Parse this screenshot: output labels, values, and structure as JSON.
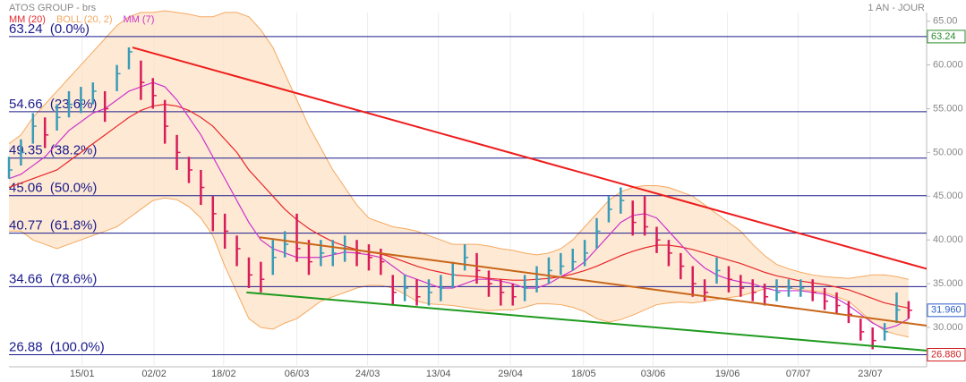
{
  "chart_data": {
    "type": "ohlc",
    "title": "ATOS GROUP - brs",
    "period": "1 AN - JOUR",
    "xlim": [
      0,
      76.5
    ],
    "xticks": [
      {
        "value": 6.1,
        "label": "15/01"
      },
      {
        "value": 12.1,
        "label": "02/02"
      },
      {
        "value": 17.9,
        "label": "18/02"
      },
      {
        "value": 24,
        "label": "06/03"
      },
      {
        "value": 29.9,
        "label": "24/03"
      },
      {
        "value": 35.8,
        "label": "13/04"
      },
      {
        "value": 41.8,
        "label": "29/04"
      },
      {
        "value": 47.9,
        "label": "18/05"
      },
      {
        "value": 53.7,
        "label": "03/06"
      },
      {
        "value": 59.9,
        "label": "19/06"
      },
      {
        "value": 65.8,
        "label": "07/07"
      },
      {
        "value": 71.8,
        "label": "23/07"
      }
    ],
    "ylim": [
      25.5,
      66.4
    ],
    "yticks": [
      {
        "value": 30,
        "label": "30.000"
      },
      {
        "value": 35,
        "label": "35.000"
      },
      {
        "value": 40,
        "label": "40.000"
      },
      {
        "value": 45,
        "label": "45.000"
      },
      {
        "value": 50,
        "label": "50.000"
      },
      {
        "value": 55,
        "label": "55.000"
      },
      {
        "value": 60,
        "label": "60.000"
      },
      {
        "value": 65,
        "label": "65.00"
      }
    ],
    "grid": true,
    "ohlc": {
      "up_color": "#3a9bb8",
      "down_color": "#d81b5a",
      "high": [
        49.5,
        51.5,
        54.5,
        54,
        55.5,
        57,
        57.5,
        58,
        57,
        60,
        62,
        60.5,
        58.5,
        56,
        52,
        49.5,
        48,
        45,
        43,
        40.5,
        38,
        37.5,
        40,
        41,
        43,
        40,
        40,
        40,
        40.5,
        40,
        39.5,
        39,
        36,
        36,
        35.5,
        35.5,
        36,
        37.5,
        39.5,
        38.5,
        36.5,
        35.5,
        35,
        36,
        37,
        38,
        38.5,
        39,
        40,
        42.5,
        45,
        46,
        44.5,
        45,
        41.5,
        40,
        38.5,
        37,
        35.5,
        38,
        37,
        36,
        35.5,
        35,
        35.5,
        35.5,
        35.5,
        35.5,
        34.5,
        34,
        33,
        31,
        30,
        30.5,
        34,
        33
      ],
      "low": [
        47,
        48.5,
        51,
        50.5,
        52.5,
        54,
        54.5,
        55.5,
        53.5,
        57,
        59.5,
        56,
        55,
        51,
        48,
        46.5,
        44,
        41,
        39,
        37,
        34.5,
        34,
        36,
        38,
        37.5,
        36,
        37,
        37,
        37.5,
        37,
        36.5,
        36,
        32.5,
        33,
        32.5,
        32.5,
        33,
        34.5,
        36.5,
        35,
        33.5,
        32.5,
        32.5,
        33,
        34,
        35,
        36,
        36.5,
        37,
        39,
        42,
        43,
        40.5,
        40.5,
        38.5,
        37,
        35.5,
        33.5,
        33,
        35,
        34,
        33.5,
        33,
        32.5,
        33,
        33.5,
        33.5,
        33,
        32,
        31.5,
        30.5,
        28.5,
        27.5,
        28.5,
        30.5,
        31
      ],
      "close": [
        48,
        50,
        53,
        52,
        54,
        55.5,
        56,
        57,
        55,
        59,
        61.5,
        58,
        56.5,
        53,
        50,
        48,
        46,
        43,
        41,
        39,
        36,
        35.5,
        38,
        39.5,
        39,
        37.5,
        38.5,
        38.5,
        39,
        38.5,
        38,
        37.5,
        34,
        34.5,
        33.5,
        34,
        34.5,
        36,
        38,
        36.5,
        35,
        34,
        33.5,
        34.5,
        35.5,
        36.5,
        37,
        37.5,
        38.5,
        41,
        43.5,
        44.5,
        42,
        41.5,
        40,
        38.5,
        37,
        35,
        34,
        36.5,
        35.5,
        34.5,
        34,
        33.5,
        34,
        34.5,
        34.5,
        34,
        33,
        32.5,
        31.5,
        29.5,
        28.5,
        29.5,
        32,
        31.96
      ]
    },
    "series": [
      {
        "name": "MM (20)",
        "color": "#e8262b",
        "values": [
          46,
          46.5,
          47,
          47.5,
          48,
          49,
          50,
          51,
          52,
          53,
          54,
          54.8,
          55.3,
          55.5,
          55.3,
          54.8,
          54,
          53,
          51.5,
          50,
          48,
          46.5,
          45,
          43.5,
          42.3,
          41.3,
          40.5,
          39.8,
          39.3,
          38.9,
          38.6,
          38.4,
          38,
          37.5,
          37,
          36.6,
          36.3,
          36,
          35.9,
          35.8,
          35.6,
          35.5,
          35.4,
          35.4,
          35.5,
          35.6,
          35.8,
          36.1,
          36.5,
          37,
          37.6,
          38.2,
          38.7,
          39.1,
          39.4,
          39.4,
          39.2,
          38.9,
          38.5,
          38.1,
          37.7,
          37.3,
          36.8,
          36.3,
          35.9,
          35.6,
          35.3,
          35.1,
          34.9,
          34.6,
          34.3,
          33.8,
          33.3,
          32.8,
          32.5,
          32.2
        ]
      },
      {
        "name": "BOLL (20, 2)",
        "color": "#f4a860",
        "upper": [
          51,
          52,
          54,
          55.5,
          57,
          58.5,
          60,
          61.5,
          63,
          64.5,
          65.5,
          66,
          66,
          66.2,
          66,
          65.8,
          65.5,
          65.5,
          66,
          66,
          65.5,
          64,
          62,
          59,
          56,
          53,
          50.5,
          48,
          46,
          44,
          42.5,
          42,
          41.5,
          41.3,
          41,
          40.5,
          40,
          39.5,
          39.5,
          39.5,
          39.3,
          39,
          38.8,
          38.5,
          38.3,
          38.5,
          39,
          40,
          41.5,
          43,
          44.5,
          45.5,
          46,
          46.2,
          46.2,
          46,
          45.5,
          45,
          44,
          43,
          42,
          41,
          39.5,
          38.2,
          37.2,
          36.7,
          36.3,
          36,
          35.8,
          35.7,
          35.6,
          35.8,
          36,
          36,
          35.8,
          35.5
        ],
        "lower": [
          41,
          41,
          40,
          39.5,
          39,
          39.5,
          40,
          40.5,
          41,
          41.5,
          42.5,
          43.5,
          44.5,
          44.8,
          44.6,
          43.8,
          42.5,
          40.5,
          37,
          34,
          31,
          30,
          29.8,
          30.5,
          31,
          32,
          33,
          33.5,
          34,
          34.5,
          34.8,
          34.8,
          34.5,
          33.8,
          33,
          32.7,
          32.6,
          32.5,
          32.3,
          32.1,
          31.9,
          32,
          32,
          32.3,
          32.7,
          32.7,
          32.6,
          32.3,
          31.8,
          31,
          30.6,
          30.9,
          31.4,
          32,
          32.6,
          32.8,
          32.9,
          32.8,
          33,
          33.2,
          33.4,
          33.6,
          34,
          34.4,
          34.6,
          34.5,
          34.3,
          34.2,
          34,
          33.5,
          33,
          31.8,
          30.6,
          29.6,
          29.2,
          28.9
        ]
      },
      {
        "name": "MM (7)",
        "color": "#cc33cc",
        "values": [
          47,
          47.5,
          48.5,
          49.5,
          51,
          52.5,
          53.5,
          54.5,
          55,
          56,
          57,
          57.5,
          58,
          57.5,
          56,
          54,
          52,
          49.5,
          47,
          44.5,
          42,
          40,
          39,
          38.5,
          38,
          38,
          38,
          38.3,
          38.6,
          38.5,
          38.3,
          38,
          37,
          36,
          35.5,
          35,
          34.5,
          34.5,
          35,
          35.5,
          35.5,
          35.3,
          35,
          34.5,
          34.5,
          35,
          35.8,
          36.5,
          37.5,
          39,
          40.5,
          42,
          42.8,
          43,
          42.5,
          41,
          39.5,
          38,
          36.8,
          36,
          35.5,
          35.2,
          35,
          34.5,
          34.2,
          34.2,
          34.2,
          34,
          33.8,
          33.3,
          32.5,
          31.5,
          30.5,
          29.8,
          30.2,
          31
        ]
      }
    ],
    "trendlines": [
      {
        "color": "#ee1c1c",
        "x": [
          10.3,
          76.5
        ],
        "values": [
          62,
          36.7
        ]
      },
      {
        "color": "#c8661a",
        "x": [
          20.9,
          76.5
        ],
        "values": [
          40.3,
          30.2
        ]
      },
      {
        "color": "#1e9a1e",
        "x": [
          19.8,
          76.5
        ],
        "values": [
          34,
          27.35
        ]
      }
    ],
    "fib_levels": [
      {
        "value": 63.24,
        "label": "63.24  (0.0%)"
      },
      {
        "value": 54.66,
        "label": "54.66  (23.6%)"
      },
      {
        "value": 49.35,
        "label": "49.35  (38.2%)"
      },
      {
        "value": 45.06,
        "label": "45.06  (50.0%)"
      },
      {
        "value": 40.77,
        "label": "40.77  (61.8%)"
      },
      {
        "value": 34.66,
        "label": "34.66  (78.6%)"
      },
      {
        "value": 26.88,
        "label": "26.88  (100.0%)"
      }
    ],
    "price_tags": [
      {
        "value": 63.24,
        "label": "63.24",
        "color": "#2e8b2e"
      },
      {
        "value": 31.96,
        "label": "31.960",
        "color": "#2a5cc8"
      },
      {
        "value": 26.88,
        "label": "26.880",
        "color": "#d22020"
      }
    ]
  }
}
